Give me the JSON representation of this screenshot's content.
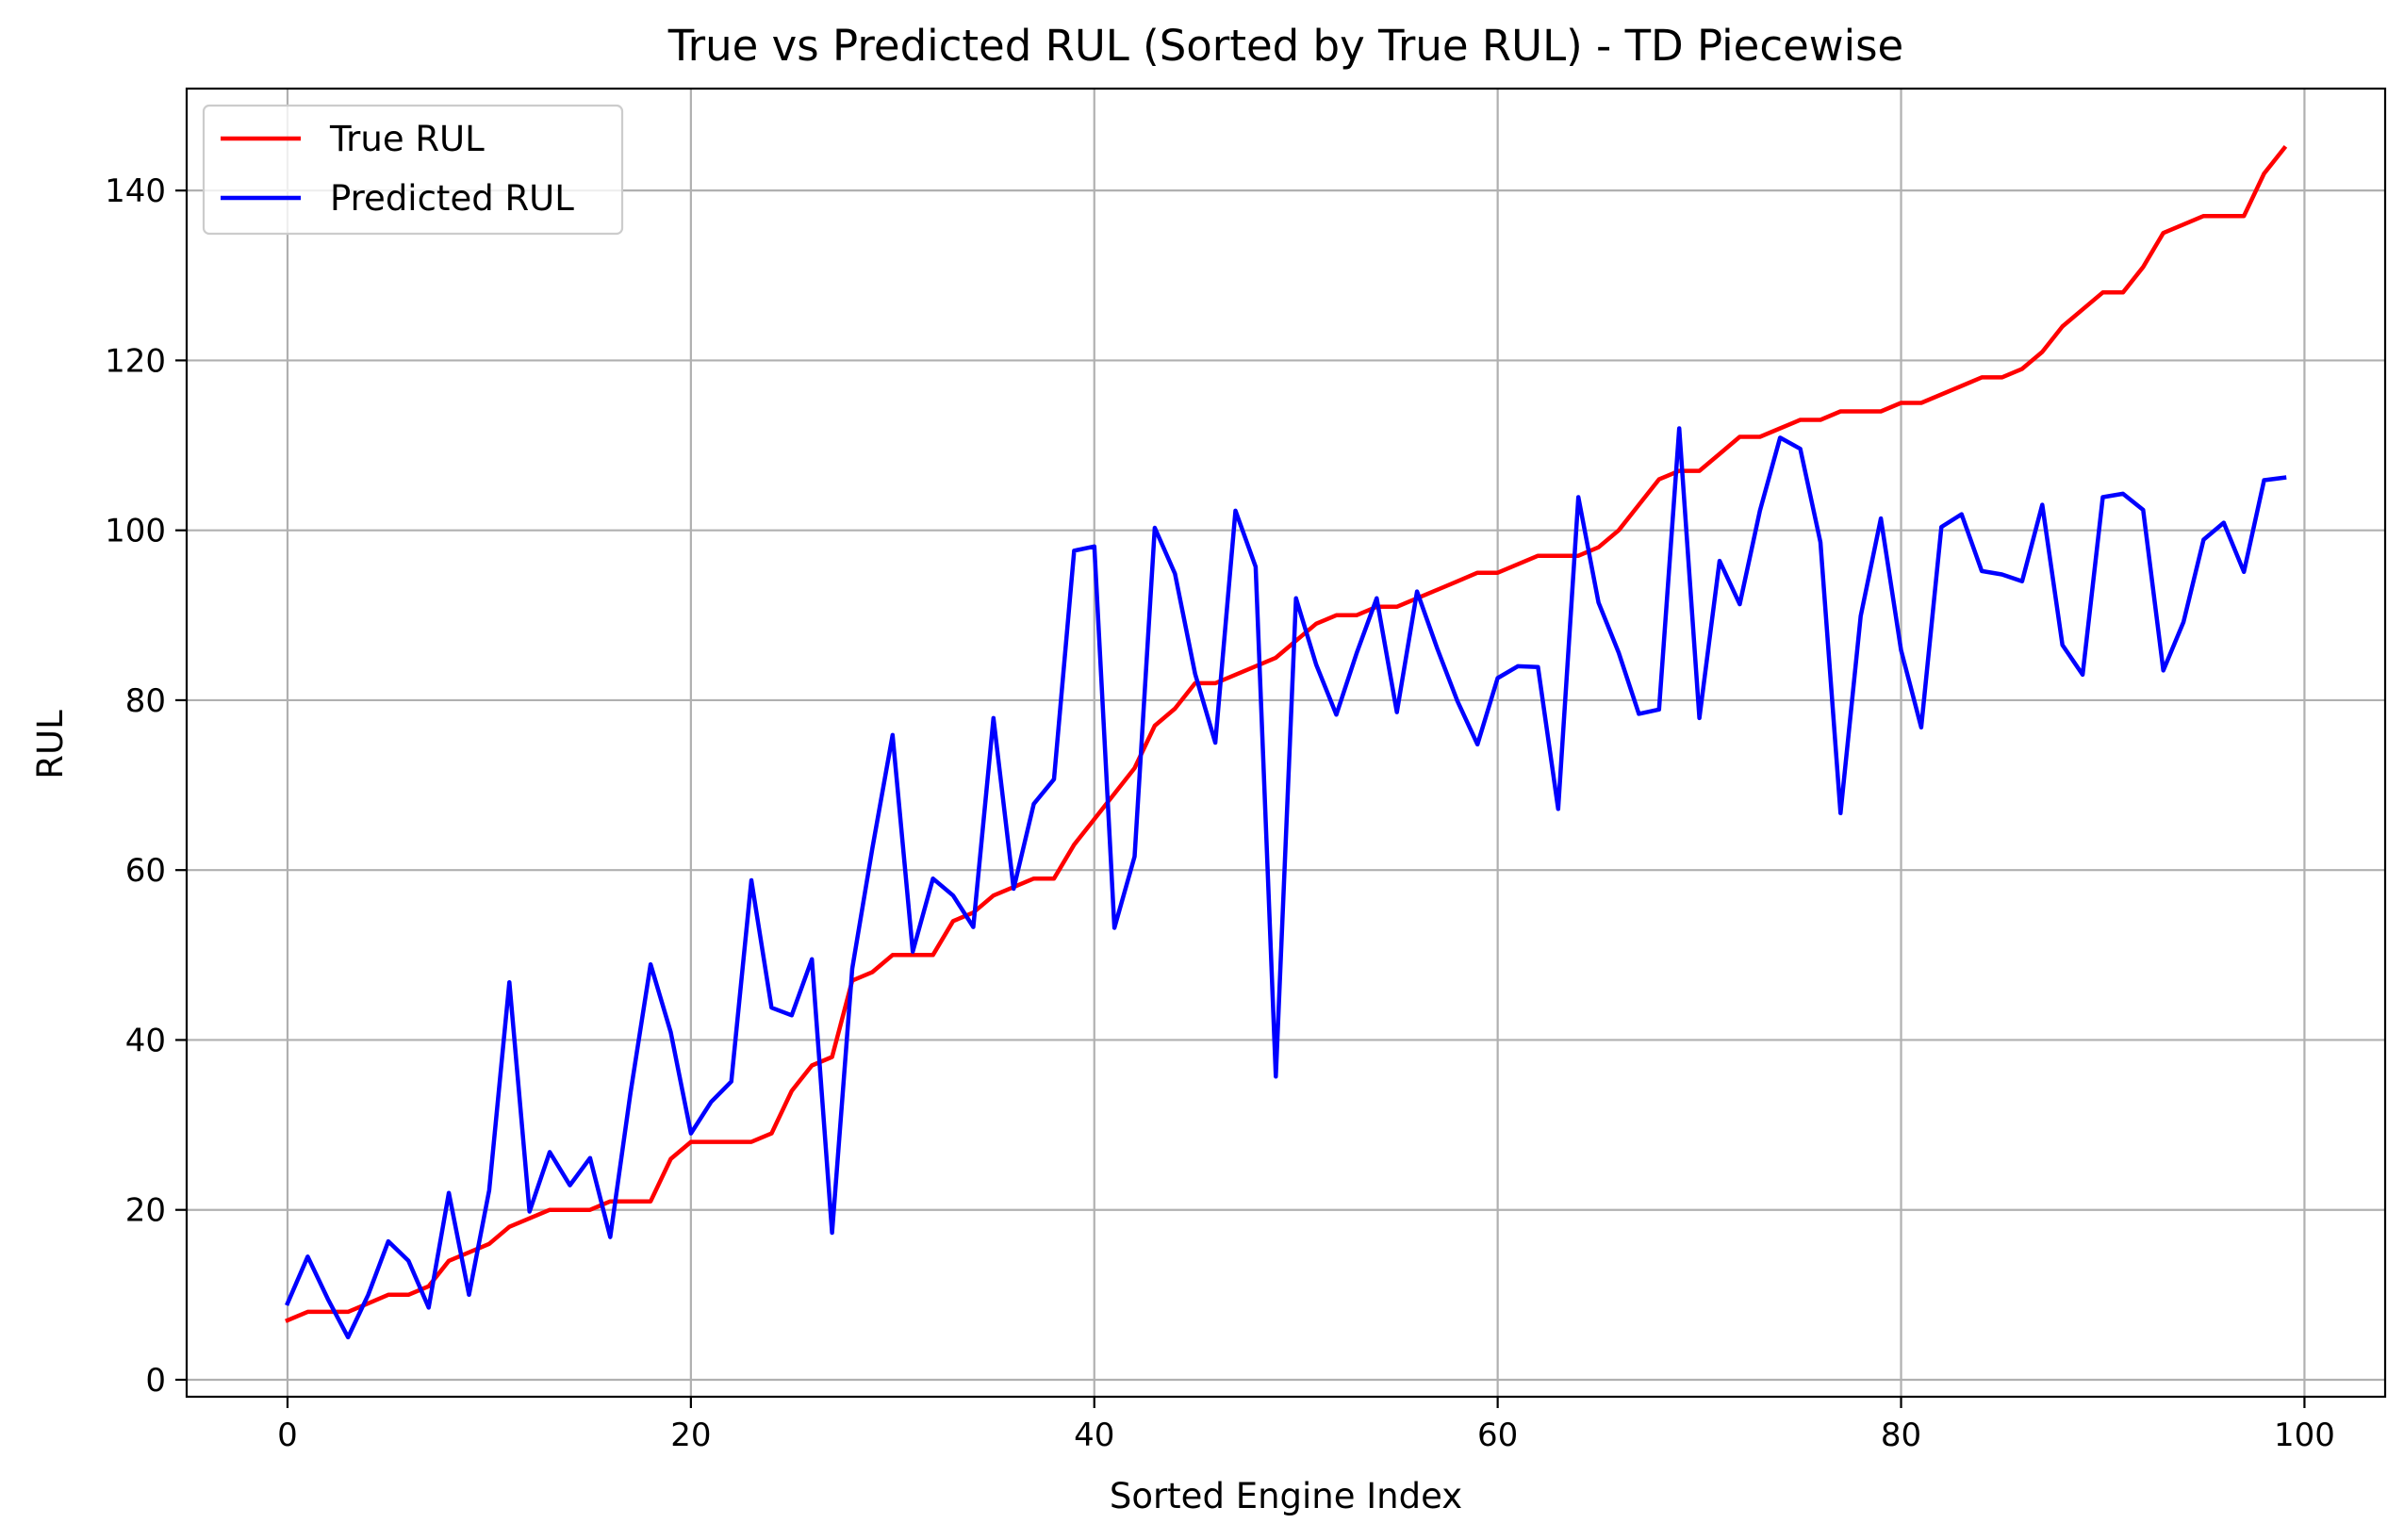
{
  "chart_data": {
    "type": "line",
    "title": "True vs Predicted RUL (Sorted by True RUL) - TD Piecewise",
    "xlabel": "Sorted Engine Index",
    "ylabel": "RUL",
    "xlim": [
      -5,
      104
    ],
    "ylim": [
      -2,
      152
    ],
    "xticks": [
      0,
      20,
      40,
      60,
      80,
      100
    ],
    "yticks": [
      0,
      20,
      40,
      60,
      80,
      100,
      120,
      140
    ],
    "grid": true,
    "legend_position": "top-left",
    "series": [
      {
        "name": "True RUL",
        "color": "#ff0000",
        "values": [
          7,
          8,
          8,
          8,
          9,
          10,
          10,
          11,
          14,
          15,
          16,
          18,
          19,
          20,
          20,
          20,
          21,
          21,
          21,
          26,
          28,
          28,
          28,
          28,
          29,
          34,
          37,
          38,
          47,
          48,
          50,
          50,
          50,
          54,
          55,
          57,
          58,
          59,
          59,
          63,
          66,
          69,
          72,
          77,
          79,
          82,
          82,
          83,
          84,
          85,
          87,
          89,
          90,
          90,
          91,
          91,
          92,
          93,
          94,
          95,
          95,
          96,
          97,
          97,
          97,
          98,
          100,
          103,
          106,
          107,
          107,
          109,
          111,
          111,
          112,
          113,
          113,
          114,
          114,
          114,
          115,
          115,
          116,
          117,
          118,
          118,
          119,
          121,
          124,
          126,
          128,
          128,
          131,
          135,
          136,
          137,
          137,
          137,
          142,
          145
        ]
      },
      {
        "name": "Predicted RUL",
        "color": "#0000ff",
        "values": [
          9,
          14.5,
          9.5,
          5,
          10,
          16.3,
          14,
          8.5,
          22,
          10,
          22.3,
          46.8,
          19.8,
          26.8,
          22.9,
          26.1,
          16.8,
          33.7,
          48.9,
          40.9,
          29,
          32.7,
          35.1,
          58.8,
          43.8,
          42.9,
          49.5,
          17.3,
          48.4,
          62.6,
          75.9,
          50.4,
          59,
          57,
          53.3,
          77.9,
          57.8,
          67.8,
          70.7,
          97.6,
          98.1,
          53.2,
          61.6,
          100.3,
          94.9,
          83.1,
          75,
          102.3,
          95.7,
          35.7,
          92,
          84.2,
          78.3,
          85.5,
          92,
          78.6,
          92.8,
          86.1,
          79.9,
          74.8,
          82.6,
          84,
          83.9,
          67.2,
          103.9,
          91.5,
          85.6,
          78.4,
          78.9,
          112,
          77.9,
          96.4,
          91.3,
          102.3,
          110.9,
          109.6,
          98.6,
          66.7,
          89.9,
          101.4,
          85.9,
          76.8,
          100.4,
          101.9,
          95.2,
          94.8,
          94,
          103,
          86.5,
          83,
          103.9,
          104.3,
          102.4,
          83.5,
          89.2,
          98.9,
          100.9,
          95.1,
          105.9,
          106.2
        ]
      }
    ]
  }
}
